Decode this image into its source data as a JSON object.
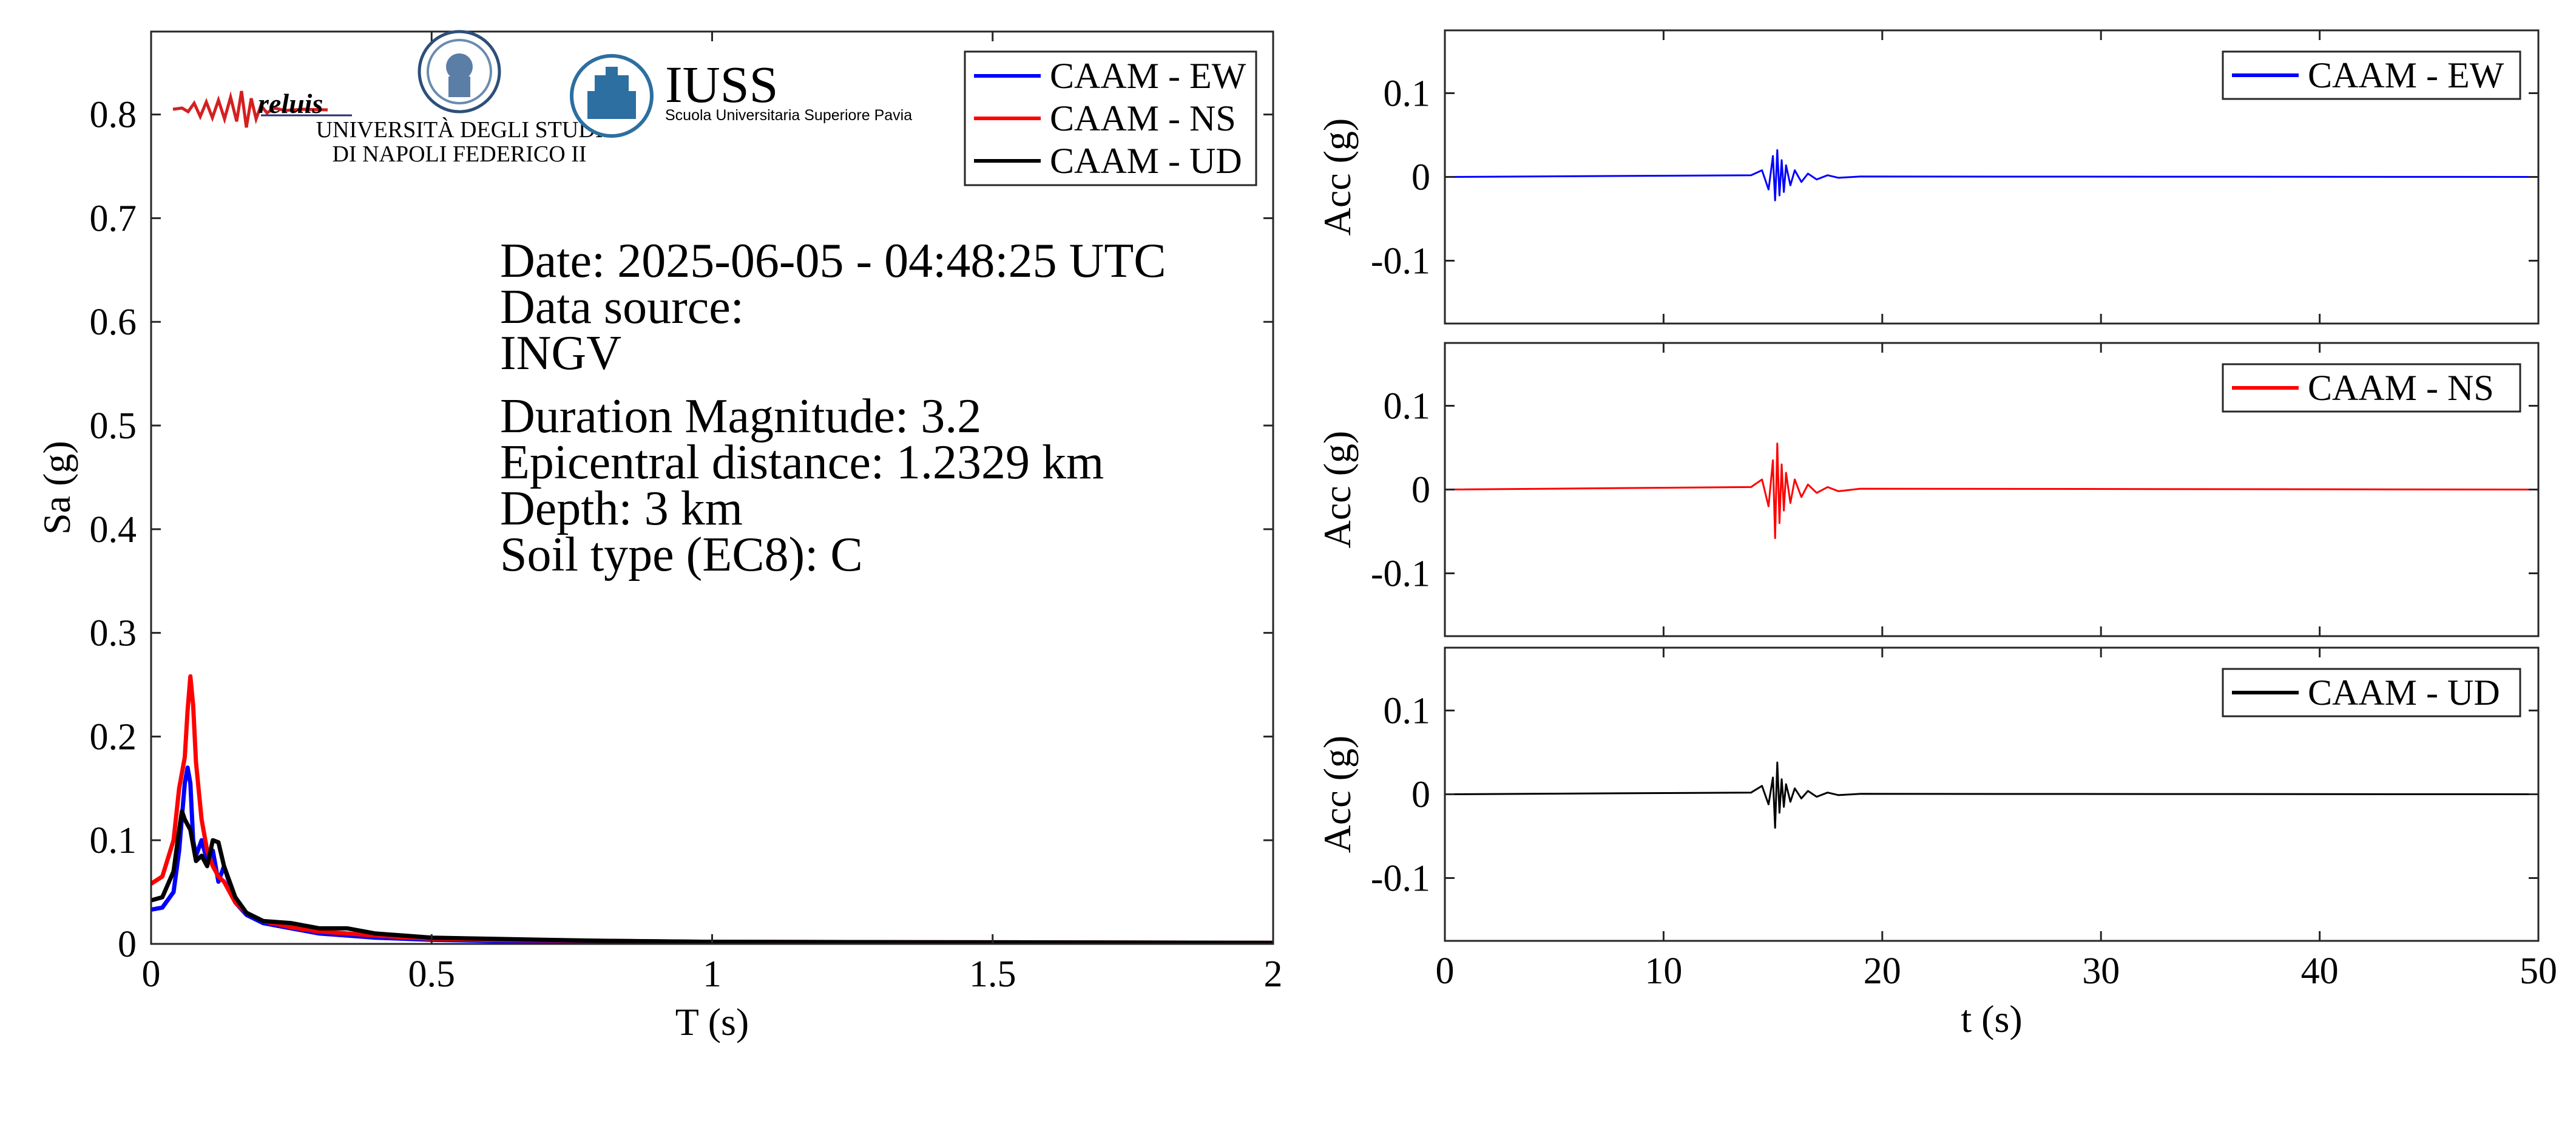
{
  "logos": {
    "reluis": "reluis",
    "unina_line1": "UNIVERSITÀ DEGLI STUDI",
    "unina_line2": "DI NAPOLI FEDERICO II",
    "iuss_title": "IUSS",
    "iuss_subtitle": "Scuola Universitaria Superiore Pavia"
  },
  "info": {
    "date": "Date: 2025-06-05 - 04:48:25 UTC",
    "source_label": "Data source:",
    "source": "INGV",
    "magnitude": "Duration Magnitude: 3.2",
    "distance": "Epicentral distance: 1.2329 km",
    "depth": "Depth: 3 km",
    "soil": "Soil type (EC8): C"
  },
  "colors": {
    "ew": "#0000ff",
    "ns": "#ff0000",
    "ud": "#000000"
  },
  "chart_data": [
    {
      "type": "line",
      "xlabel": "T (s)",
      "ylabel": "Sa (g)",
      "xlim": [
        0,
        2
      ],
      "ylim": [
        0,
        0.88
      ],
      "xticks": [
        0,
        0.5,
        1,
        1.5,
        2
      ],
      "xtick_labels": [
        "0",
        "0.5",
        "1",
        "1.5",
        "2"
      ],
      "yticks": [
        0,
        0.1,
        0.2,
        0.3,
        0.4,
        0.5,
        0.6,
        0.7,
        0.8
      ],
      "ytick_labels": [
        "0",
        "0.1",
        "0.2",
        "0.3",
        "0.4",
        "0.5",
        "0.6",
        "0.7",
        "0.8"
      ],
      "grid": false,
      "legend_position": "top-right",
      "series": [
        {
          "name": "CAAM - EW",
          "color": "#0000ff",
          "x": [
            0,
            0.02,
            0.04,
            0.05,
            0.06,
            0.065,
            0.07,
            0.075,
            0.08,
            0.09,
            0.1,
            0.11,
            0.12,
            0.13,
            0.15,
            0.17,
            0.2,
            0.25,
            0.3,
            0.35,
            0.4,
            0.5,
            0.6,
            0.8,
            1.0,
            1.5,
            2.0
          ],
          "y": [
            0.033,
            0.035,
            0.05,
            0.09,
            0.155,
            0.17,
            0.155,
            0.1,
            0.085,
            0.1,
            0.08,
            0.09,
            0.06,
            0.075,
            0.04,
            0.028,
            0.02,
            0.015,
            0.01,
            0.008,
            0.006,
            0.004,
            0.003,
            0.002,
            0.0015,
            0.001,
            0.0008
          ]
        },
        {
          "name": "CAAM - NS",
          "color": "#ff0000",
          "x": [
            0,
            0.02,
            0.04,
            0.05,
            0.06,
            0.065,
            0.07,
            0.075,
            0.08,
            0.09,
            0.1,
            0.11,
            0.12,
            0.13,
            0.15,
            0.17,
            0.2,
            0.25,
            0.3,
            0.35,
            0.4,
            0.5,
            0.6,
            0.8,
            1.0,
            1.5,
            2.0
          ],
          "y": [
            0.058,
            0.065,
            0.1,
            0.15,
            0.18,
            0.225,
            0.258,
            0.23,
            0.175,
            0.12,
            0.09,
            0.075,
            0.065,
            0.06,
            0.04,
            0.03,
            0.022,
            0.016,
            0.012,
            0.01,
            0.008,
            0.005,
            0.004,
            0.003,
            0.002,
            0.0015,
            0.001
          ]
        },
        {
          "name": "CAAM - UD",
          "color": "#000000",
          "x": [
            0,
            0.02,
            0.04,
            0.05,
            0.055,
            0.06,
            0.07,
            0.08,
            0.09,
            0.1,
            0.11,
            0.12,
            0.13,
            0.15,
            0.17,
            0.2,
            0.25,
            0.3,
            0.35,
            0.4,
            0.45,
            0.5,
            0.6,
            0.8,
            1.0,
            1.5,
            2.0
          ],
          "y": [
            0.042,
            0.045,
            0.07,
            0.11,
            0.128,
            0.12,
            0.11,
            0.08,
            0.085,
            0.075,
            0.1,
            0.098,
            0.075,
            0.045,
            0.03,
            0.022,
            0.02,
            0.015,
            0.015,
            0.01,
            0.008,
            0.006,
            0.005,
            0.003,
            0.002,
            0.0015,
            0.001
          ]
        }
      ]
    },
    {
      "type": "line",
      "xlabel": "",
      "ylabel": "Acc (g)",
      "xlim": [
        0,
        50
      ],
      "ylim": [
        -0.175,
        0.175
      ],
      "xticks": [
        0,
        10,
        20,
        30,
        40,
        50
      ],
      "yticks": [
        -0.1,
        0,
        0.1
      ],
      "ytick_labels": [
        "-0.1",
        "0",
        "0.1"
      ],
      "legend_position": "top-right",
      "series": [
        {
          "name": "CAAM - EW",
          "color": "#0000ff",
          "x": [
            0,
            14.0,
            14.5,
            14.8,
            15.0,
            15.1,
            15.2,
            15.3,
            15.4,
            15.5,
            15.6,
            15.8,
            16.0,
            16.3,
            16.6,
            17.0,
            17.5,
            18.0,
            19.0,
            50
          ],
          "y": [
            0,
            0.002,
            0.008,
            -0.015,
            0.025,
            -0.028,
            0.032,
            -0.022,
            0.02,
            -0.018,
            0.014,
            -0.01,
            0.008,
            -0.006,
            0.004,
            -0.003,
            0.002,
            -0.001,
            0.0005,
            0
          ]
        }
      ]
    },
    {
      "type": "line",
      "xlabel": "",
      "ylabel": "Acc (g)",
      "xlim": [
        0,
        50
      ],
      "ylim": [
        -0.175,
        0.175
      ],
      "xticks": [
        0,
        10,
        20,
        30,
        40,
        50
      ],
      "yticks": [
        -0.1,
        0,
        0.1
      ],
      "ytick_labels": [
        "-0.1",
        "0",
        "0.1"
      ],
      "legend_position": "top-right",
      "series": [
        {
          "name": "CAAM - NS",
          "color": "#ff0000",
          "x": [
            0,
            14.0,
            14.5,
            14.8,
            15.0,
            15.1,
            15.2,
            15.3,
            15.4,
            15.5,
            15.6,
            15.8,
            16.0,
            16.3,
            16.6,
            17.0,
            17.5,
            18.0,
            19.0,
            50
          ],
          "y": [
            0,
            0.003,
            0.012,
            -0.02,
            0.035,
            -0.058,
            0.055,
            -0.04,
            0.03,
            -0.025,
            0.02,
            -0.016,
            0.012,
            -0.009,
            0.006,
            -0.004,
            0.003,
            -0.002,
            0.001,
            0
          ]
        }
      ]
    },
    {
      "type": "line",
      "xlabel": "t (s)",
      "ylabel": "Acc (g)",
      "xlim": [
        0,
        50
      ],
      "ylim": [
        -0.175,
        0.175
      ],
      "xticks": [
        0,
        10,
        20,
        30,
        40,
        50
      ],
      "xtick_labels": [
        "0",
        "10",
        "20",
        "30",
        "40",
        "50"
      ],
      "yticks": [
        -0.1,
        0,
        0.1
      ],
      "ytick_labels": [
        "-0.1",
        "0",
        "0.1"
      ],
      "legend_position": "top-right",
      "series": [
        {
          "name": "CAAM - UD",
          "color": "#000000",
          "x": [
            0,
            14.0,
            14.5,
            14.8,
            15.0,
            15.1,
            15.2,
            15.3,
            15.4,
            15.5,
            15.6,
            15.8,
            16.0,
            16.3,
            16.6,
            17.0,
            17.5,
            18.0,
            19.0,
            50
          ],
          "y": [
            0,
            0.002,
            0.01,
            -0.012,
            0.02,
            -0.04,
            0.038,
            -0.022,
            0.018,
            -0.015,
            0.012,
            -0.009,
            0.007,
            -0.005,
            0.004,
            -0.003,
            0.002,
            -0.001,
            0.0005,
            0
          ]
        }
      ]
    }
  ]
}
